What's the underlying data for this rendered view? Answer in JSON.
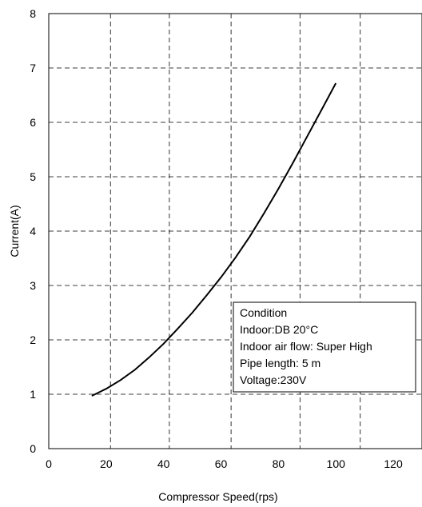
{
  "chart_data": {
    "type": "line",
    "title": "",
    "xlabel": "Compressor Speed(rps)",
    "ylabel": "Current(A)",
    "xlim": [
      0,
      130
    ],
    "ylim": [
      0,
      8
    ],
    "x_ticks": [
      0,
      20,
      40,
      60,
      80,
      100,
      120
    ],
    "y_ticks": [
      0,
      1,
      2,
      3,
      4,
      5,
      6,
      7,
      8
    ],
    "grid_x": [
      21.5,
      42,
      63.5,
      87.5,
      108.5
    ],
    "grid_y": [
      1,
      2,
      3,
      4,
      5,
      6,
      7
    ],
    "grid": true,
    "series": [
      {
        "x": [
          15,
          20,
          25,
          30,
          35,
          40,
          45,
          50,
          55,
          60,
          65,
          70,
          75,
          80,
          85,
          90,
          95,
          100
        ],
        "y": [
          0.97,
          1.1,
          1.26,
          1.45,
          1.68,
          1.93,
          2.21,
          2.5,
          2.82,
          3.15,
          3.51,
          3.9,
          4.33,
          4.78,
          5.25,
          5.74,
          6.23,
          6.72
        ],
        "color": "#000000"
      }
    ],
    "legend": {
      "position": "lower-right",
      "lines": [
        "Condition",
        "Indoor:DB 20°C",
        "Indoor air flow: Super High",
        "Pipe length:  5 m",
        "Voltage:230V"
      ]
    }
  }
}
